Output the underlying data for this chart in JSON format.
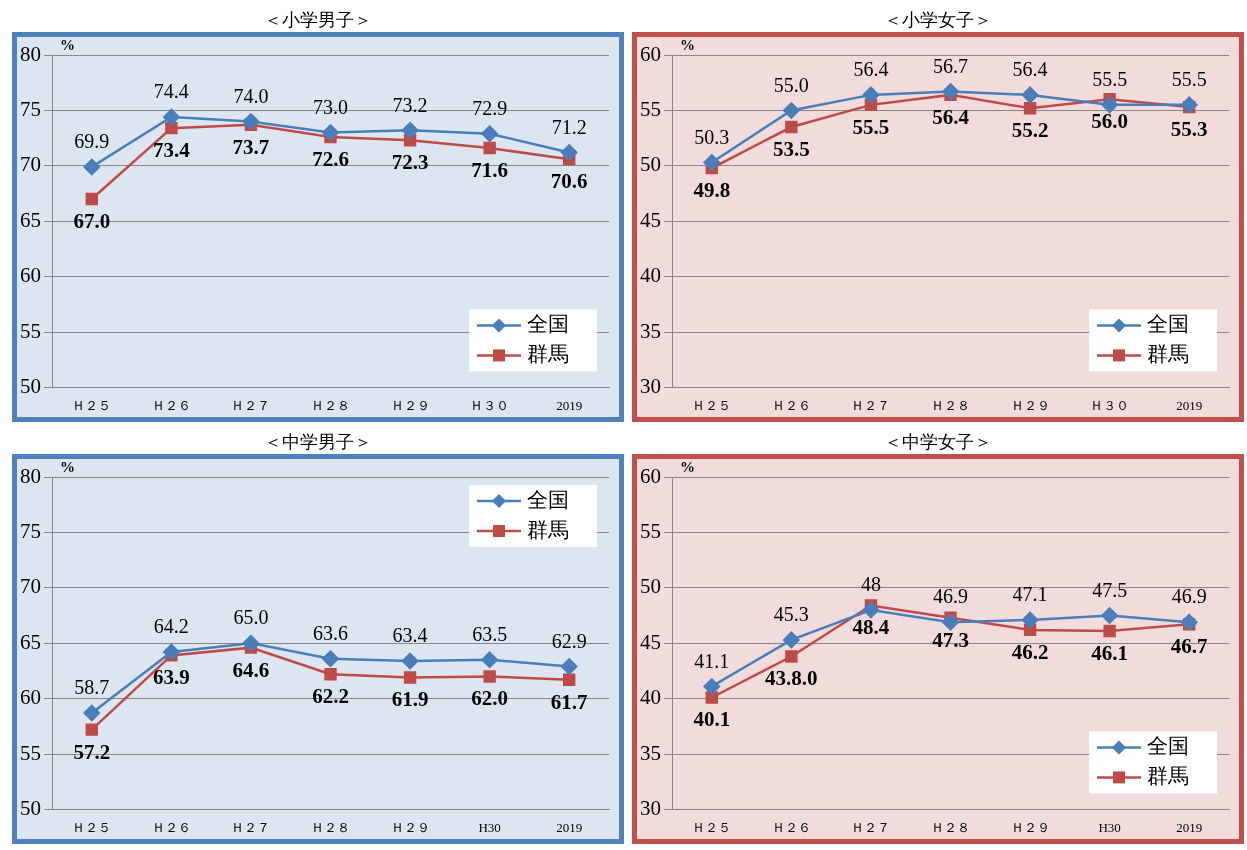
{
  "chart_data": [
    {
      "type": "line",
      "title": "＜小学男子＞",
      "ylabel": "%",
      "categories": [
        "Ｈ２５",
        "Ｈ２６",
        "Ｈ２７",
        "Ｈ２８",
        "Ｈ２９",
        "Ｈ３０",
        "2019"
      ],
      "ylim": [
        50,
        80
      ],
      "yticks": [
        50,
        55,
        60,
        65,
        70,
        75,
        80
      ],
      "grid": "y",
      "legend": "bottom right",
      "series": [
        {
          "name": "全国",
          "color": "#4a7ebb",
          "marker": "diamond",
          "values": [
            69.9,
            74.4,
            74.0,
            73.0,
            73.2,
            72.9,
            71.2
          ],
          "value_labels": [
            "69.9",
            "74.4",
            "74.0",
            "73.0",
            "73.2",
            "72.9",
            "71.2"
          ]
        },
        {
          "name": "群馬",
          "color": "#be4b48",
          "marker": "square",
          "values": [
            67.0,
            73.4,
            73.7,
            72.6,
            72.3,
            71.6,
            70.6
          ],
          "value_labels": [
            "67.0",
            "73.4",
            "73.7",
            "72.6",
            "72.3",
            "71.6",
            "70.6"
          ]
        }
      ]
    },
    {
      "type": "line",
      "title": "＜小学女子＞",
      "ylabel": "%",
      "categories": [
        "Ｈ２５",
        "Ｈ２６",
        "Ｈ２７",
        "Ｈ２８",
        "Ｈ２９",
        "Ｈ３０",
        "2019"
      ],
      "ylim": [
        30,
        60
      ],
      "yticks": [
        30,
        35,
        40,
        45,
        50,
        55,
        60
      ],
      "grid": "y",
      "legend": "bottom right",
      "series": [
        {
          "name": "全国",
          "color": "#4a7ebb",
          "marker": "diamond",
          "values": [
            50.3,
            55.0,
            56.4,
            56.7,
            56.4,
            55.5,
            55.5
          ],
          "value_labels": [
            "50.3",
            "55.0",
            "56.4",
            "56.7",
            "56.4",
            "55.5",
            "55.5"
          ]
        },
        {
          "name": "群馬",
          "color": "#be4b48",
          "marker": "square",
          "values": [
            49.8,
            53.5,
            55.5,
            56.4,
            55.2,
            56.0,
            55.3
          ],
          "value_labels": [
            "49.8",
            "53.5",
            "55.5",
            "56.4",
            "55.2",
            "56.0",
            "55.3"
          ]
        }
      ]
    },
    {
      "type": "line",
      "title": "＜中学男子＞",
      "ylabel": "%",
      "categories": [
        "Ｈ２５",
        "Ｈ２６",
        "Ｈ２７",
        "Ｈ２８",
        "Ｈ２９",
        "H30",
        "2019"
      ],
      "ylim": [
        50,
        80
      ],
      "yticks": [
        50,
        55,
        60,
        65,
        70,
        75,
        80
      ],
      "grid": "y",
      "legend": "top right",
      "series": [
        {
          "name": "全国",
          "color": "#4a7ebb",
          "marker": "diamond",
          "values": [
            58.7,
            64.2,
            65.0,
            63.6,
            63.4,
            63.5,
            62.9
          ],
          "value_labels": [
            "58.7",
            "64.2",
            "65.0",
            "63.6",
            "63.4",
            "63.5",
            "62.9"
          ]
        },
        {
          "name": "群馬",
          "color": "#be4b48",
          "marker": "square",
          "values": [
            57.2,
            63.9,
            64.6,
            62.2,
            61.9,
            62.0,
            61.7
          ],
          "value_labels": [
            "57.2",
            "63.9",
            "64.6",
            "62.2",
            "61.9",
            "62.0",
            "61.7"
          ]
        }
      ]
    },
    {
      "type": "line",
      "title": "＜中学女子＞",
      "ylabel": "%",
      "categories": [
        "Ｈ２５",
        "Ｈ２６",
        "Ｈ２７",
        "Ｈ２８",
        "Ｈ２９",
        "H30",
        "2019"
      ],
      "ylim": [
        30,
        60
      ],
      "yticks": [
        30,
        35,
        40,
        45,
        50,
        55,
        60
      ],
      "grid": "y",
      "legend": "bottom right",
      "series": [
        {
          "name": "全国",
          "color": "#4a7ebb",
          "marker": "diamond",
          "values": [
            41.1,
            45.3,
            48.0,
            46.9,
            47.1,
            47.5,
            46.9
          ],
          "value_labels": [
            "41.1",
            "45.3",
            "48",
            "46.9",
            "47.1",
            "47.5",
            "46.9"
          ]
        },
        {
          "name": "群馬",
          "color": "#be4b48",
          "marker": "square",
          "values": [
            40.1,
            43.8,
            48.4,
            47.3,
            46.2,
            46.1,
            46.7
          ],
          "value_labels": [
            "40.1",
            "43.8.0",
            "48.4",
            "47.3",
            "46.2",
            "46.1",
            "46.7"
          ]
        }
      ]
    }
  ]
}
